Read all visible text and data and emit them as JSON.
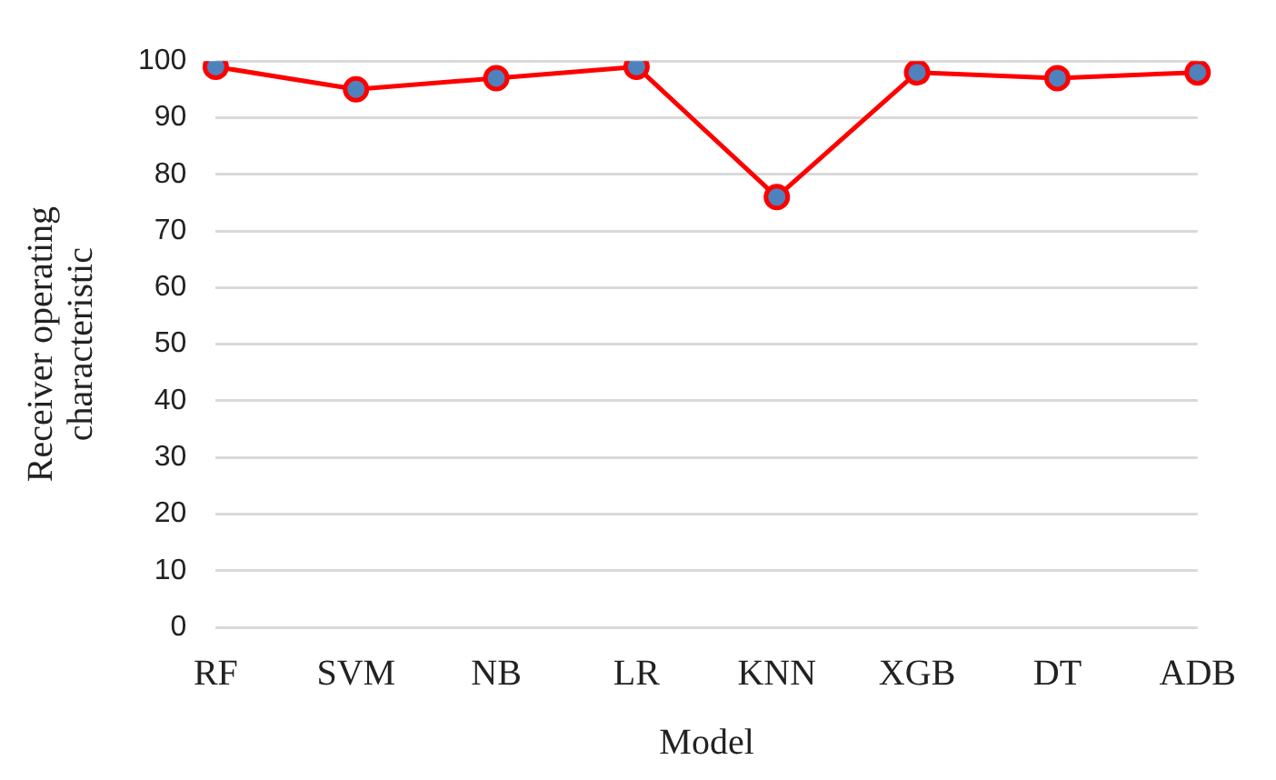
{
  "chart_data": {
    "type": "line",
    "xlabel": "Model",
    "ylabel": "Receiver operating characteristic",
    "categories": [
      "RF",
      "SVM",
      "NB",
      "LR",
      "KNN",
      "XGB",
      "DT",
      "ADB"
    ],
    "series": [
      {
        "color": "#ff0000",
        "values": [
          99,
          95,
          97,
          99,
          76,
          98,
          97,
          98
        ]
      }
    ],
    "ylim": [
      0,
      100
    ],
    "yticks": [
      0,
      10,
      20,
      30,
      40,
      50,
      60,
      70,
      80,
      90,
      100
    ],
    "grid": "y",
    "legend": false,
    "marker": "circle",
    "line_style": "solid"
  }
}
